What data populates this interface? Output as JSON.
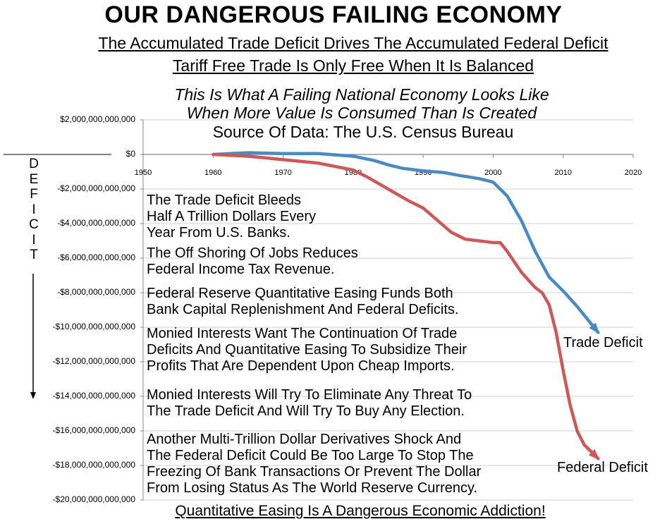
{
  "header": {
    "title": "OUR DANGEROUS FAILING ECONOMY",
    "subtitle1": "The Accumulated Trade Deficit Drives The Accumulated Federal Deficit",
    "subtitle2": "Tariff Free Trade Is Only Free When It Is Balanced",
    "italic1": "This Is What A Failing National Economy Looks Like",
    "italic2": "When More Value Is Consumed Than Is Created",
    "source": "Source Of Data:  The U.S. Census Bureau"
  },
  "annotations": {
    "deficit_letters": [
      "D",
      "E",
      "F",
      "I",
      "C",
      "I",
      "T"
    ],
    "notes": [
      "The Trade Deficit Bleeds\nHalf A Trillion Dollars Every\nYear From U.S. Banks.",
      "The Off Shoring Of Jobs Reduces\nFederal Income Tax Revenue.",
      "Federal Reserve Quantitative Easing Funds Both\nBank Capital Replenishment And Federal Deficits.",
      "Monied Interests Want The Continuation Of Trade\nDeficits And Quantitative Easing To Subsidize Their\nProfits That Are Dependent Upon Cheap Imports.",
      "Monied Interests Will Try To Eliminate Any Threat To\nThe Trade Deficit And Will Try To Buy Any Election.",
      "Another Multi-Trillion Dollar Derivatives Shock And\nThe Federal Deficit Could Be Too Large To Stop The\nFreezing Of Bank Transactions Or Prevent The Dollar\nFrom Losing Status As The World Reserve Currency."
    ],
    "footer": "Quantitative Easing Is A Dangerous Economic Addiction!"
  },
  "colors": {
    "trade": "#4a8ac2",
    "federal": "#cc5858",
    "grid": "#d0d0d0",
    "axis": "#888888"
  },
  "chart_data": {
    "type": "line",
    "xlim": [
      1950,
      2020
    ],
    "ylim": [
      -20000000000000,
      2000000000000
    ],
    "xticks": [
      1950,
      1960,
      1970,
      1980,
      1990,
      2000,
      2010,
      2020
    ],
    "ytick_labels": [
      "$2,000,000,000,000",
      "$0",
      "-$2,000,000,000,000",
      "-$4,000,000,000,000",
      "-$6,000,000,000,000",
      "-$8,000,000,000,000",
      "-$10,000,000,000,000",
      "-$12,000,000,000,000",
      "-$14,000,000,000,000",
      "-$16,000,000,000,000",
      "-$18,000,000,000,000",
      "-$20,000,000,000,000"
    ],
    "yticks": [
      2000000000000.0,
      0,
      -2000000000000.0,
      -4000000000000.0,
      -6000000000000.0,
      -8000000000000.0,
      -10000000000000.0,
      -12000000000000.0,
      -14000000000000.0,
      -16000000000000.0,
      -18000000000000.0,
      -20000000000000.0
    ],
    "grid": true,
    "series": [
      {
        "name": "Trade Deficit",
        "x": [
          1960,
          1965,
          1970,
          1975,
          1980,
          1983,
          1985,
          1987,
          1990,
          1993,
          1995,
          1998,
          2000,
          2002,
          2004,
          2006,
          2008,
          2010,
          2012,
          2015
        ],
        "y": [
          0,
          100000000000.0,
          50000000000.0,
          50000000000.0,
          -100000000000.0,
          -350000000000.0,
          -600000000000.0,
          -800000000000.0,
          -950000000000.0,
          -1050000000000.0,
          -1200000000000.0,
          -1400000000000.0,
          -1600000000000.0,
          -2400000000000.0,
          -3800000000000.0,
          -5600000000000.0,
          -7100000000000.0,
          -7900000000000.0,
          -8800000000000.0,
          -10300000000000.0
        ]
      },
      {
        "name": "Federal Deficit",
        "x": [
          1960,
          1965,
          1970,
          1975,
          1980,
          1982,
          1985,
          1988,
          1990,
          1992,
          1994,
          1996,
          1998,
          2000,
          2001,
          2002,
          2004,
          2006,
          2007,
          2008,
          2009,
          2010,
          2011,
          2012,
          2013,
          2015
        ],
        "y": [
          0,
          -100000000000.0,
          -300000000000.0,
          -500000000000.0,
          -900000000000.0,
          -1300000000000.0,
          -2000000000000.0,
          -2700000000000.0,
          -3100000000000.0,
          -3800000000000.0,
          -4500000000000.0,
          -4900000000000.0,
          -5000000000000.0,
          -5100000000000.0,
          -5100000000000.0,
          -5600000000000.0,
          -6800000000000.0,
          -7700000000000.0,
          -8000000000000.0,
          -8700000000000.0,
          -10300000000000.0,
          -12500000000000.0,
          -14500000000000.0,
          -16000000000000.0,
          -16800000000000.0,
          -17600000000000.0
        ]
      }
    ]
  }
}
